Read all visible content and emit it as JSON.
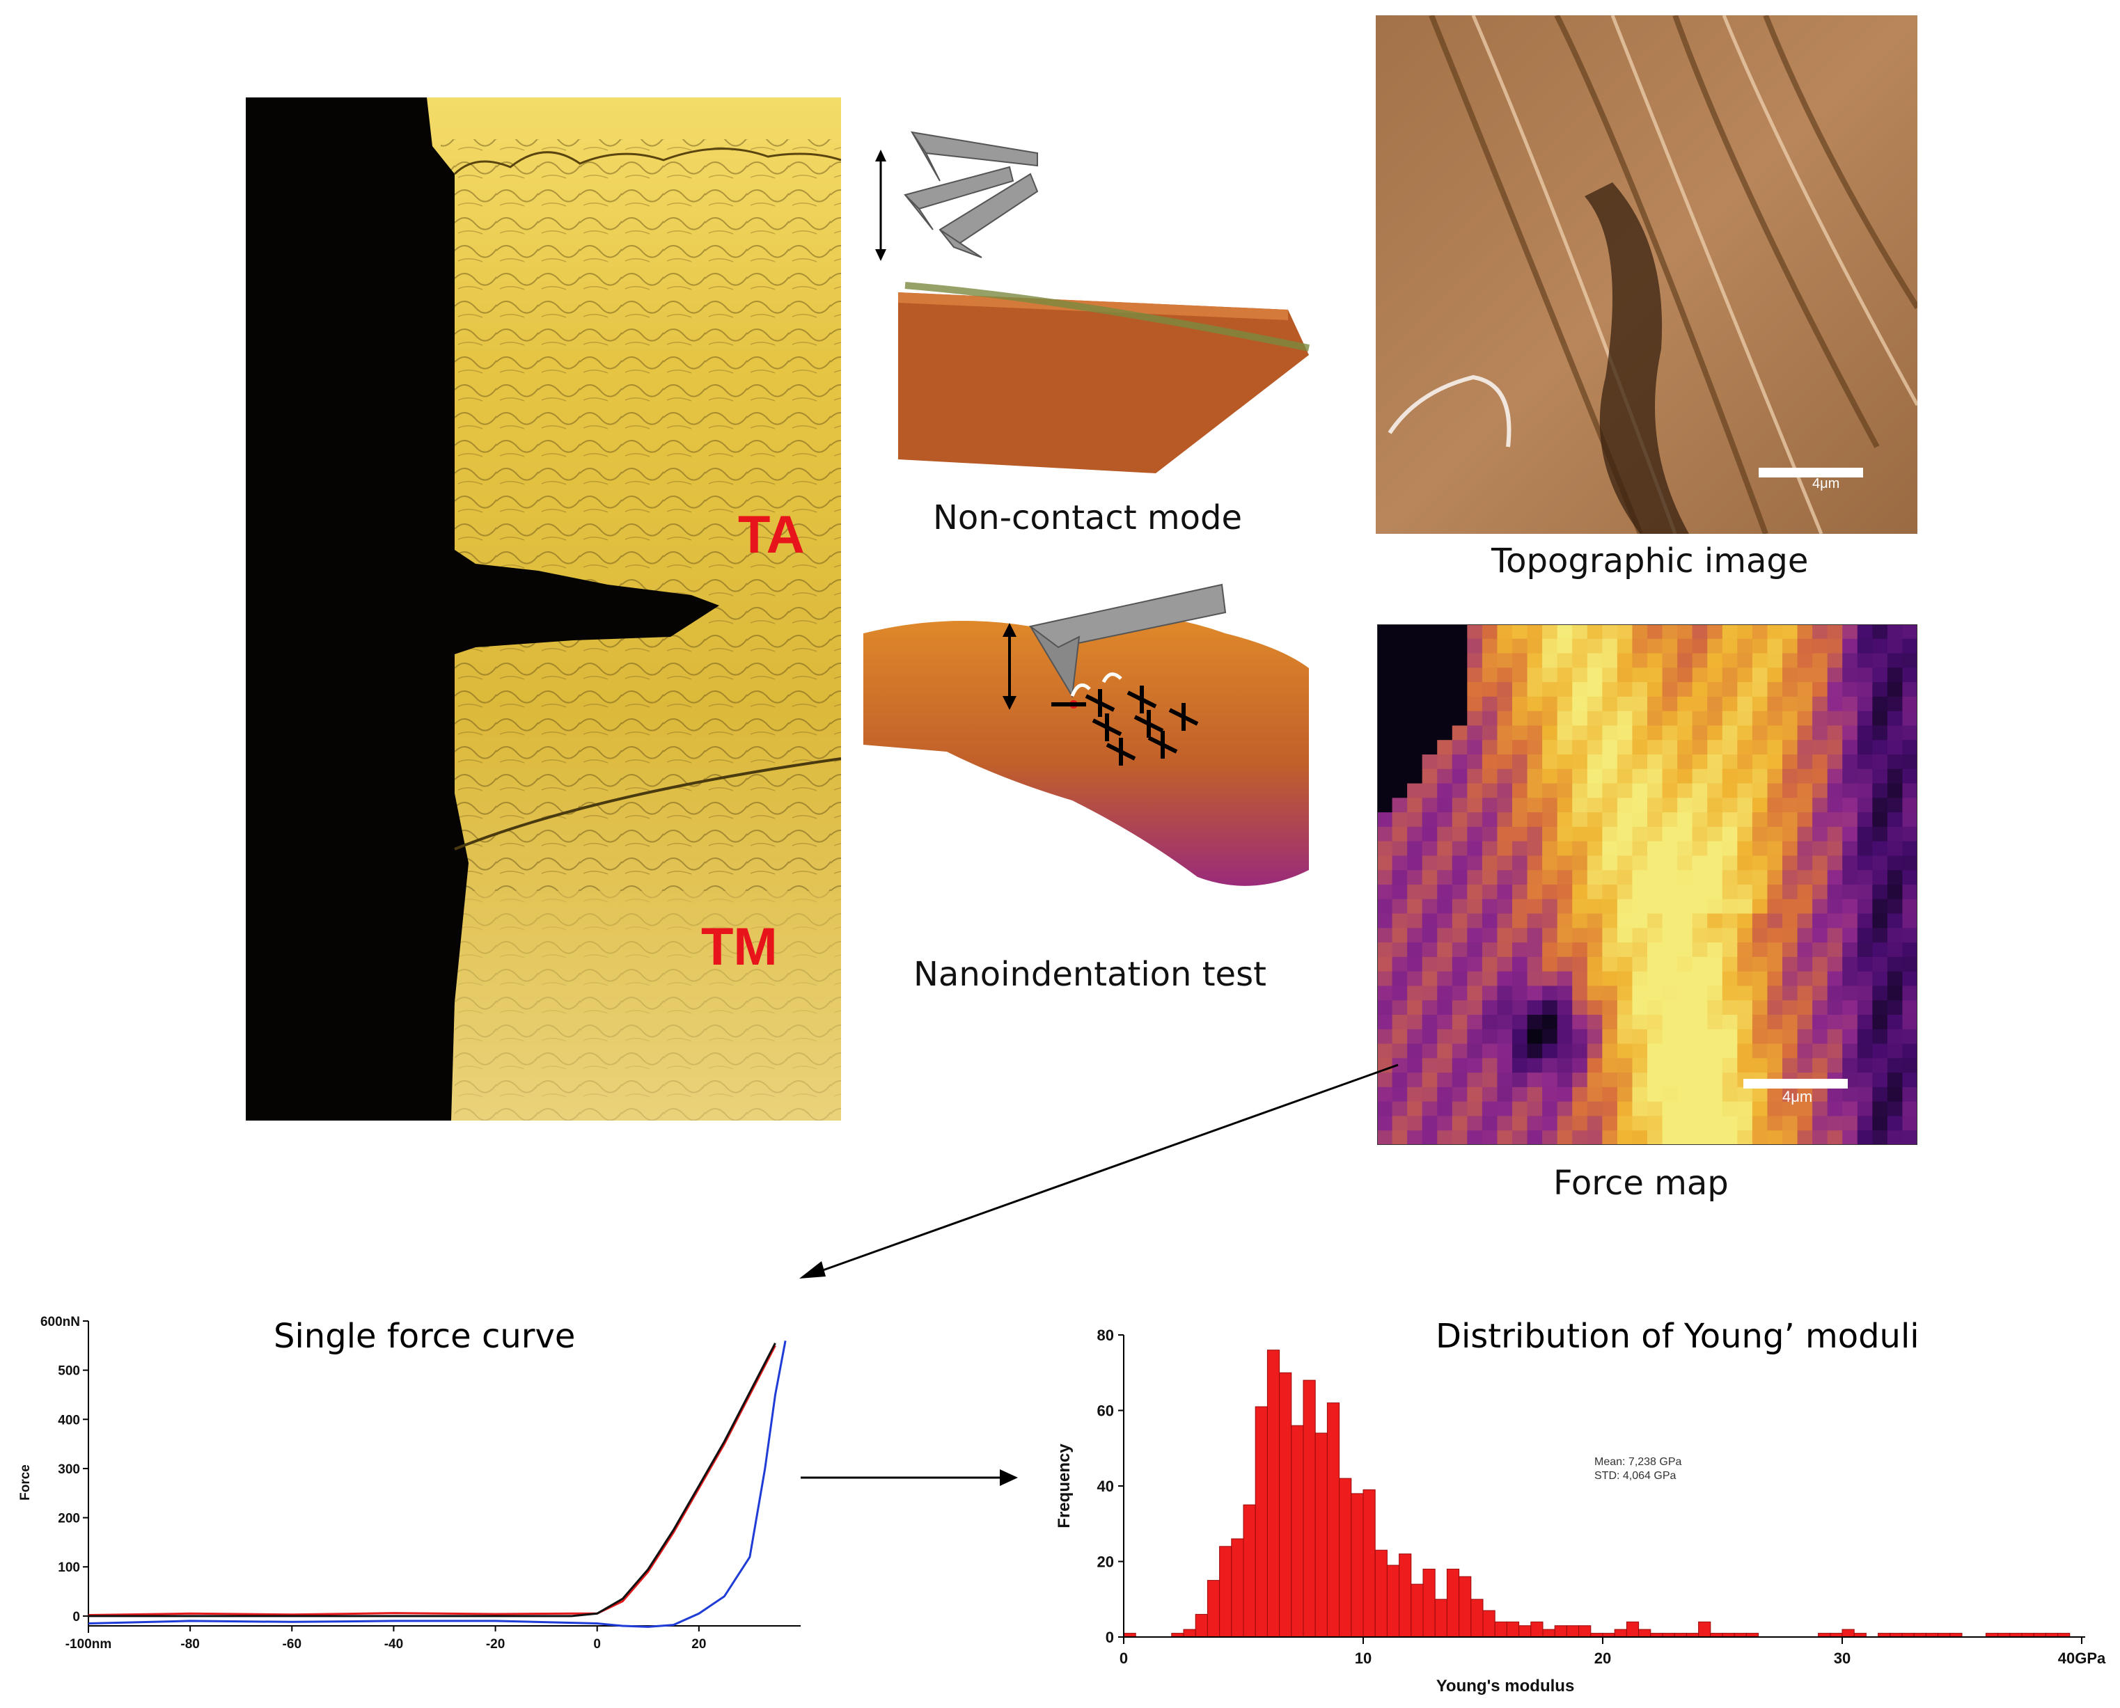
{
  "panels": {
    "microscopy": {
      "label_ta": "TA",
      "label_tm": "TM"
    },
    "noncontact": {
      "caption": "Non-contact mode"
    },
    "nanoindent": {
      "caption": "Nanoindentation test"
    },
    "topographic": {
      "caption": "Topographic image",
      "scale_label": "4μm"
    },
    "forcemap": {
      "caption": "Force map",
      "scale_label": "4μm"
    }
  },
  "chart_data": [
    {
      "type": "line",
      "title": "Single force curve",
      "xlabel": "",
      "ylabel": "Force",
      "x_ticks": [
        "-100nm",
        "-80",
        "-60",
        "-40",
        "-20",
        "0",
        "20"
      ],
      "y_ticks": [
        "600nN",
        "500",
        "400",
        "300",
        "200",
        "100",
        "0"
      ],
      "xlim": [
        -100,
        40
      ],
      "ylim": [
        -20,
        600
      ],
      "series": [
        {
          "color": "#e41a1c",
          "x": [
            -100,
            -80,
            -60,
            -40,
            -20,
            -5,
            0,
            5,
            10,
            15,
            20,
            25,
            30,
            35
          ],
          "y": [
            2,
            5,
            3,
            6,
            4,
            5,
            5,
            30,
            90,
            170,
            260,
            350,
            450,
            550
          ]
        },
        {
          "color": "#111111",
          "x": [
            -100,
            -60,
            -20,
            -5,
            0,
            5,
            10,
            15,
            20,
            25,
            30,
            35
          ],
          "y": [
            0,
            0,
            0,
            0,
            5,
            35,
            95,
            175,
            265,
            355,
            455,
            555
          ]
        },
        {
          "color": "#1f3dd6",
          "x": [
            -100,
            -80,
            -60,
            -40,
            -20,
            0,
            5,
            10,
            15,
            20,
            25,
            30,
            33,
            35,
            37
          ],
          "y": [
            -15,
            -10,
            -12,
            -10,
            -10,
            -15,
            -20,
            -22,
            -18,
            5,
            40,
            120,
            300,
            450,
            560
          ]
        }
      ]
    },
    {
      "type": "bar",
      "title": "Distribution of Young’ moduli",
      "xlabel": "Young's modulus",
      "ylabel": "Frequency",
      "x_ticks": [
        "0",
        "10",
        "20",
        "30",
        "40GPa"
      ],
      "y_ticks": [
        "0",
        "20",
        "40",
        "60",
        "80"
      ],
      "xlim": [
        0,
        40
      ],
      "ylim": [
        0,
        80
      ],
      "bin_width": 0.5,
      "bin_start": 0,
      "values": [
        1,
        0,
        0,
        0,
        1,
        2,
        6,
        15,
        24,
        26,
        35,
        61,
        76,
        70,
        56,
        68,
        54,
        62,
        42,
        38,
        39,
        23,
        19,
        22,
        14,
        18,
        10,
        18,
        16,
        10,
        7,
        4,
        4,
        3,
        4,
        2,
        3,
        3,
        3,
        1,
        1,
        2,
        4,
        2,
        1,
        1,
        1,
        1,
        4,
        1,
        1,
        1,
        1,
        0,
        0,
        0,
        0,
        0,
        1,
        1,
        2,
        1,
        0,
        1,
        1,
        1,
        1,
        1,
        1,
        1,
        0,
        0,
        1,
        1,
        1,
        1,
        1,
        1,
        1,
        0
      ],
      "annotation": [
        "Mean: 7,238 GPa",
        "STD: 4,064 GPa"
      ]
    }
  ]
}
